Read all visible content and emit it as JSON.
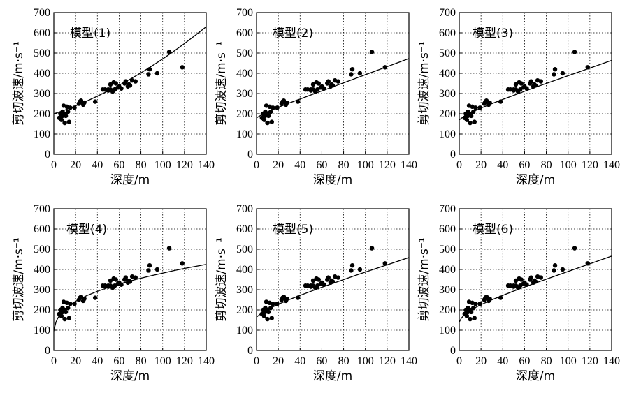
{
  "chart_data": [
    {
      "type": "scatter",
      "title": "模型(1)",
      "xlabel": "深度/m",
      "ylabel": "剪切波速/m·s⁻¹",
      "xlim": [
        0,
        140
      ],
      "ylim": [
        0,
        700
      ],
      "xticks": [
        0,
        20,
        40,
        60,
        80,
        100,
        120,
        140
      ],
      "yticks": [
        0,
        100,
        200,
        300,
        400,
        500,
        600,
        700
      ],
      "grid": true,
      "series": [
        {
          "type": "scatter",
          "x": [
            5,
            6,
            7,
            8,
            8,
            9,
            10,
            10,
            11,
            12,
            13,
            14,
            15,
            19,
            23,
            24,
            25,
            27,
            28,
            38,
            45,
            47,
            50,
            50,
            52,
            52,
            54,
            55,
            56,
            57,
            59,
            60,
            62,
            65,
            66,
            68,
            69,
            70,
            72,
            75,
            87,
            88,
            95,
            106,
            118
          ],
          "y": [
            180,
            200,
            170,
            190,
            210,
            240,
            155,
            200,
            190,
            235,
            210,
            160,
            230,
            230,
            250,
            260,
            265,
            245,
            255,
            260,
            320,
            320,
            320,
            315,
            345,
            320,
            310,
            355,
            320,
            350,
            330,
            335,
            325,
            350,
            360,
            335,
            345,
            340,
            365,
            360,
            395,
            420,
            400,
            505,
            430
          ]
        },
        {
          "type": "line",
          "x": [
            0,
            10,
            20,
            30,
            40,
            50,
            60,
            70,
            80,
            90,
            100,
            110,
            120,
            130,
            140
          ],
          "y": [
            200,
            218,
            239,
            262,
            287,
            313,
            341,
            371,
            402,
            436,
            471,
            508,
            547,
            588,
            630
          ]
        }
      ]
    },
    {
      "type": "scatter",
      "title": "模型(2)",
      "xlabel": "深度/m",
      "ylabel": "剪切波速/m·s⁻¹",
      "xlim": [
        0,
        140
      ],
      "ylim": [
        0,
        700
      ],
      "xticks": [
        0,
        20,
        40,
        60,
        80,
        100,
        120,
        140
      ],
      "yticks": [
        0,
        100,
        200,
        300,
        400,
        500,
        600,
        700
      ],
      "grid": true,
      "series": [
        {
          "type": "scatter",
          "x": [
            5,
            6,
            7,
            8,
            8,
            9,
            10,
            10,
            11,
            12,
            13,
            14,
            15,
            19,
            23,
            24,
            25,
            27,
            28,
            38,
            45,
            47,
            50,
            50,
            52,
            52,
            54,
            55,
            56,
            57,
            59,
            60,
            62,
            65,
            66,
            68,
            69,
            70,
            72,
            75,
            87,
            88,
            95,
            106,
            118
          ],
          "y": [
            180,
            200,
            170,
            190,
            210,
            240,
            155,
            200,
            190,
            235,
            210,
            160,
            230,
            230,
            250,
            260,
            265,
            245,
            255,
            260,
            320,
            320,
            320,
            315,
            345,
            320,
            310,
            355,
            320,
            350,
            330,
            335,
            325,
            350,
            360,
            335,
            345,
            340,
            365,
            360,
            395,
            420,
            400,
            505,
            430
          ]
        },
        {
          "type": "line",
          "x": [
            0,
            5,
            10,
            20,
            30,
            40,
            50,
            60,
            70,
            80,
            90,
            100,
            110,
            120,
            130,
            140
          ],
          "y": [
            180,
            196,
            209,
            232,
            253,
            273,
            293,
            313,
            333,
            353,
            373,
            393,
            413,
            433,
            453,
            473
          ]
        }
      ]
    },
    {
      "type": "scatter",
      "title": "模型(3)",
      "xlabel": "深度/m",
      "ylabel": "剪切波速/m·s⁻¹",
      "xlim": [
        0,
        140
      ],
      "ylim": [
        0,
        700
      ],
      "xticks": [
        0,
        20,
        40,
        60,
        80,
        100,
        120,
        140
      ],
      "yticks": [
        0,
        100,
        200,
        300,
        400,
        500,
        600,
        700
      ],
      "grid": true,
      "series": [
        {
          "type": "scatter",
          "x": [
            5,
            6,
            7,
            8,
            8,
            9,
            10,
            10,
            11,
            12,
            13,
            14,
            15,
            19,
            23,
            24,
            25,
            27,
            28,
            38,
            45,
            47,
            50,
            50,
            52,
            52,
            54,
            55,
            56,
            57,
            59,
            60,
            62,
            65,
            66,
            68,
            69,
            70,
            72,
            75,
            87,
            88,
            95,
            106,
            118
          ],
          "y": [
            180,
            200,
            170,
            190,
            210,
            240,
            155,
            200,
            190,
            235,
            210,
            160,
            230,
            230,
            250,
            260,
            265,
            245,
            255,
            260,
            320,
            320,
            320,
            315,
            345,
            320,
            310,
            355,
            320,
            350,
            330,
            335,
            325,
            350,
            360,
            335,
            345,
            340,
            365,
            360,
            395,
            420,
            400,
            505,
            430
          ]
        },
        {
          "type": "line",
          "x": [
            0,
            5,
            10,
            20,
            30,
            40,
            50,
            60,
            70,
            80,
            90,
            100,
            110,
            120,
            130,
            140
          ],
          "y": [
            170,
            190,
            204,
            228,
            250,
            271,
            291,
            311,
            331,
            350,
            369,
            388,
            407,
            426,
            445,
            464
          ]
        }
      ]
    },
    {
      "type": "scatter",
      "title": "模型(4)",
      "xlabel": "深度/m",
      "ylabel": "剪切波速/m·s⁻¹",
      "xlim": [
        0,
        140
      ],
      "ylim": [
        0,
        700
      ],
      "xticks": [
        0,
        20,
        40,
        60,
        80,
        100,
        120,
        140
      ],
      "yticks": [
        0,
        100,
        200,
        300,
        400,
        500,
        600,
        700
      ],
      "grid": true,
      "series": [
        {
          "type": "scatter",
          "x": [
            5,
            6,
            7,
            8,
            8,
            9,
            10,
            10,
            11,
            12,
            13,
            14,
            15,
            19,
            23,
            24,
            25,
            27,
            28,
            38,
            45,
            47,
            50,
            50,
            52,
            52,
            54,
            55,
            56,
            57,
            59,
            60,
            62,
            65,
            66,
            68,
            69,
            70,
            72,
            75,
            87,
            88,
            95,
            106,
            118
          ],
          "y": [
            180,
            200,
            170,
            190,
            210,
            240,
            155,
            200,
            190,
            235,
            210,
            160,
            230,
            230,
            250,
            260,
            265,
            245,
            255,
            260,
            320,
            320,
            320,
            315,
            345,
            320,
            310,
            355,
            320,
            350,
            330,
            335,
            325,
            350,
            360,
            335,
            345,
            340,
            365,
            360,
            395,
            420,
            400,
            505,
            430
          ]
        },
        {
          "type": "line",
          "x": [
            0,
            1,
            2,
            3,
            5,
            8,
            10,
            15,
            20,
            30,
            40,
            50,
            60,
            70,
            80,
            90,
            100,
            110,
            120,
            130,
            140
          ],
          "y": [
            95,
            120,
            140,
            153,
            172,
            193,
            204,
            225,
            243,
            270,
            292,
            311,
            328,
            343,
            357,
            370,
            382,
            394,
            405,
            415,
            425
          ]
        }
      ]
    },
    {
      "type": "scatter",
      "title": "模型(5)",
      "xlabel": "深度/m",
      "ylabel": "剪切波速/m·s⁻¹",
      "xlim": [
        0,
        140
      ],
      "ylim": [
        0,
        700
      ],
      "xticks": [
        0,
        20,
        40,
        60,
        80,
        100,
        120,
        140
      ],
      "yticks": [
        0,
        100,
        200,
        300,
        400,
        500,
        600,
        700
      ],
      "grid": true,
      "series": [
        {
          "type": "scatter",
          "x": [
            5,
            6,
            7,
            8,
            8,
            9,
            10,
            10,
            11,
            12,
            13,
            14,
            15,
            19,
            23,
            24,
            25,
            27,
            28,
            38,
            45,
            47,
            50,
            50,
            52,
            52,
            54,
            55,
            56,
            57,
            59,
            60,
            62,
            65,
            66,
            68,
            69,
            70,
            72,
            75,
            87,
            88,
            95,
            106,
            118
          ],
          "y": [
            180,
            200,
            170,
            190,
            210,
            240,
            155,
            200,
            190,
            235,
            210,
            160,
            230,
            230,
            250,
            260,
            265,
            245,
            255,
            260,
            320,
            320,
            320,
            315,
            345,
            320,
            310,
            355,
            320,
            350,
            330,
            335,
            325,
            350,
            360,
            335,
            345,
            340,
            365,
            360,
            395,
            420,
            400,
            505,
            430
          ]
        },
        {
          "type": "line",
          "x": [
            0,
            5,
            10,
            20,
            30,
            40,
            50,
            60,
            70,
            80,
            90,
            100,
            110,
            120,
            130,
            140
          ],
          "y": [
            165,
            186,
            202,
            228,
            251,
            272,
            292,
            312,
            331,
            350,
            369,
            387,
            405,
            423,
            441,
            459
          ]
        }
      ]
    },
    {
      "type": "scatter",
      "title": "模型(6)",
      "xlabel": "深度/m",
      "ylabel": "剪切波速/m·s⁻¹",
      "xlim": [
        0,
        140
      ],
      "ylim": [
        0,
        700
      ],
      "xticks": [
        0,
        20,
        40,
        60,
        80,
        100,
        120,
        140
      ],
      "yticks": [
        0,
        100,
        200,
        300,
        400,
        500,
        600,
        700
      ],
      "grid": true,
      "series": [
        {
          "type": "scatter",
          "x": [
            5,
            6,
            7,
            8,
            8,
            9,
            10,
            10,
            11,
            12,
            13,
            14,
            15,
            19,
            23,
            24,
            25,
            27,
            28,
            38,
            45,
            47,
            50,
            50,
            52,
            52,
            54,
            55,
            56,
            57,
            59,
            60,
            62,
            65,
            66,
            68,
            69,
            70,
            72,
            75,
            87,
            88,
            95,
            106,
            118
          ],
          "y": [
            180,
            200,
            170,
            190,
            210,
            240,
            155,
            200,
            190,
            235,
            210,
            160,
            230,
            230,
            250,
            260,
            265,
            245,
            255,
            260,
            320,
            320,
            320,
            315,
            345,
            320,
            310,
            355,
            320,
            350,
            330,
            335,
            325,
            350,
            360,
            335,
            345,
            340,
            365,
            360,
            395,
            420,
            400,
            505,
            430
          ]
        },
        {
          "type": "line",
          "x": [
            0,
            2,
            5,
            10,
            20,
            30,
            40,
            50,
            60,
            70,
            80,
            90,
            100,
            110,
            120,
            130,
            140
          ],
          "y": [
            140,
            160,
            178,
            198,
            226,
            250,
            272,
            293,
            313,
            333,
            352,
            371,
            390,
            409,
            428,
            447,
            466
          ]
        }
      ]
    }
  ]
}
